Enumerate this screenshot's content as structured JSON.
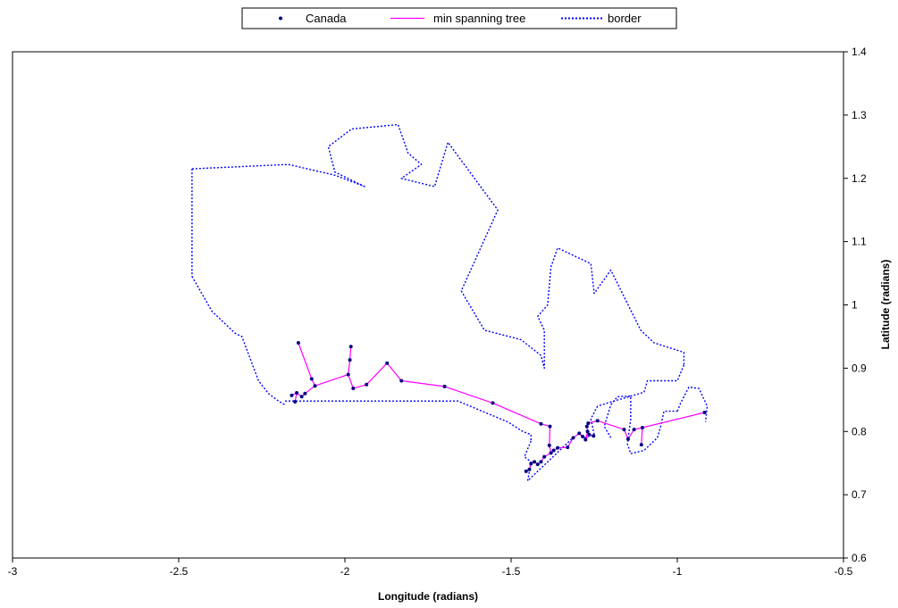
{
  "chart_data": {
    "type": "scatter",
    "xlabel": "Longitude (radians)",
    "ylabel": "Latitude (radians)",
    "xlim": [
      -3,
      -0.5
    ],
    "ylim": [
      0.6,
      1.4
    ],
    "x_ticks": [
      "-3",
      "-2.5",
      "-2",
      "-1.5",
      "-1",
      "-0.5"
    ],
    "y_ticks": [
      "0.6",
      "0.7",
      "0.8",
      "0.9",
      "1",
      "1.1",
      "1.2",
      "1.3",
      "1.4"
    ],
    "grid": false,
    "y_axis_position": "right",
    "legend_position": "top",
    "series": [
      {
        "name": "Canada",
        "style": "markers",
        "color": "#000080",
        "points": [
          [
            -2.14,
            0.94
          ],
          [
            -2.1,
            0.883
          ],
          [
            -2.09,
            0.872
          ],
          [
            -2.12,
            0.86
          ],
          [
            -2.13,
            0.855
          ],
          [
            -2.145,
            0.861
          ],
          [
            -2.16,
            0.857
          ],
          [
            -2.15,
            0.847
          ],
          [
            -1.99,
            0.89
          ],
          [
            -1.985,
            0.913
          ],
          [
            -1.982,
            0.934
          ],
          [
            -1.975,
            0.868
          ],
          [
            -1.935,
            0.874
          ],
          [
            -1.873,
            0.908
          ],
          [
            -1.83,
            0.88
          ],
          [
            -1.7,
            0.871
          ],
          [
            -1.555,
            0.845
          ],
          [
            -1.41,
            0.812
          ],
          [
            -1.383,
            0.808
          ],
          [
            -1.385,
            0.778
          ],
          [
            -1.38,
            0.766
          ],
          [
            -1.372,
            0.77
          ],
          [
            -1.36,
            0.774
          ],
          [
            -1.4,
            0.76
          ],
          [
            -1.41,
            0.752
          ],
          [
            -1.42,
            0.748
          ],
          [
            -1.43,
            0.752
          ],
          [
            -1.44,
            0.749
          ],
          [
            -1.445,
            0.74
          ],
          [
            -1.455,
            0.737
          ],
          [
            -1.33,
            0.775
          ],
          [
            -1.313,
            0.79
          ],
          [
            -1.295,
            0.797
          ],
          [
            -1.285,
            0.792
          ],
          [
            -1.276,
            0.787
          ],
          [
            -1.265,
            0.795
          ],
          [
            -1.252,
            0.793
          ],
          [
            -1.27,
            0.8
          ],
          [
            -1.272,
            0.808
          ],
          [
            -1.268,
            0.813
          ],
          [
            -1.24,
            0.817
          ],
          [
            -1.16,
            0.803
          ],
          [
            -1.148,
            0.788
          ],
          [
            -1.13,
            0.803
          ],
          [
            -1.105,
            0.806
          ],
          [
            -1.108,
            0.779
          ],
          [
            -0.918,
            0.83
          ]
        ]
      },
      {
        "name": "min spanning tree",
        "style": "line",
        "color": "#ff00ff",
        "segments": [
          [
            [
              -2.14,
              0.94
            ],
            [
              -2.1,
              0.883
            ],
            [
              -2.09,
              0.872
            ],
            [
              -2.12,
              0.86
            ],
            [
              -2.13,
              0.855
            ],
            [
              -2.145,
              0.861
            ],
            [
              -2.16,
              0.857
            ]
          ],
          [
            [
              -2.145,
              0.861
            ],
            [
              -2.15,
              0.847
            ]
          ],
          [
            [
              -2.09,
              0.872
            ],
            [
              -1.99,
              0.89
            ],
            [
              -1.985,
              0.913
            ],
            [
              -1.982,
              0.934
            ]
          ],
          [
            [
              -1.99,
              0.89
            ],
            [
              -1.975,
              0.868
            ],
            [
              -1.935,
              0.874
            ],
            [
              -1.873,
              0.908
            ],
            [
              -1.83,
              0.88
            ],
            [
              -1.7,
              0.871
            ],
            [
              -1.555,
              0.845
            ],
            [
              -1.41,
              0.812
            ],
            [
              -1.383,
              0.808
            ],
            [
              -1.385,
              0.778
            ],
            [
              -1.38,
              0.766
            ],
            [
              -1.372,
              0.77
            ],
            [
              -1.36,
              0.774
            ],
            [
              -1.33,
              0.775
            ],
            [
              -1.313,
              0.79
            ],
            [
              -1.295,
              0.797
            ],
            [
              -1.285,
              0.792
            ],
            [
              -1.276,
              0.787
            ],
            [
              -1.265,
              0.795
            ],
            [
              -1.252,
              0.793
            ]
          ],
          [
            [
              -1.38,
              0.766
            ],
            [
              -1.4,
              0.76
            ],
            [
              -1.41,
              0.752
            ],
            [
              -1.42,
              0.748
            ],
            [
              -1.43,
              0.752
            ],
            [
              -1.44,
              0.749
            ],
            [
              -1.445,
              0.74
            ],
            [
              -1.455,
              0.737
            ]
          ],
          [
            [
              -1.276,
              0.787
            ],
            [
              -1.27,
              0.8
            ],
            [
              -1.272,
              0.808
            ],
            [
              -1.268,
              0.813
            ],
            [
              -1.24,
              0.817
            ],
            [
              -1.16,
              0.803
            ],
            [
              -1.148,
              0.788
            ],
            [
              -1.13,
              0.803
            ],
            [
              -1.105,
              0.806
            ],
            [
              -0.918,
              0.83
            ]
          ],
          [
            [
              -1.105,
              0.806
            ],
            [
              -1.108,
              0.779
            ]
          ]
        ]
      },
      {
        "name": "border",
        "style": "dotted",
        "color": "#0000ff",
        "segments": [
          [
            [
              -2.46,
              1.215
            ],
            [
              -2.46,
              1.045
            ]
          ],
          [
            [
              -2.46,
              1.045
            ],
            [
              -2.4,
              0.99
            ],
            [
              -2.33,
              0.955
            ],
            [
              -2.31,
              0.95
            ],
            [
              -2.26,
              0.88
            ],
            [
              -2.23,
              0.86
            ],
            [
              -2.2,
              0.848
            ],
            [
              -2.18,
              0.842
            ]
          ],
          [
            [
              -2.18,
              0.848
            ],
            [
              -1.66,
              0.848
            ],
            [
              -1.51,
              0.815
            ],
            [
              -1.465,
              0.8
            ],
            [
              -1.44,
              0.795
            ],
            [
              -1.44,
              0.785
            ]
          ],
          [
            [
              -2.46,
              1.215
            ],
            [
              -2.17,
              1.222
            ]
          ],
          [
            [
              -2.17,
              1.222
            ],
            [
              -2.03,
              1.205
            ],
            [
              -1.94,
              1.187
            ]
          ],
          [
            [
              -1.94,
              1.187
            ],
            [
              -2.03,
              1.21
            ],
            [
              -2.05,
              1.25
            ],
            [
              -1.98,
              1.278
            ],
            [
              -1.84,
              1.285
            ],
            [
              -1.81,
              1.24
            ],
            [
              -1.77,
              1.222
            ],
            [
              -1.83,
              1.2
            ],
            [
              -1.73,
              1.187
            ],
            [
              -1.69,
              1.257
            ],
            [
              -1.54,
              1.15
            ],
            [
              -1.65,
              1.022
            ],
            [
              -1.58,
              0.96
            ],
            [
              -1.47,
              0.945
            ],
            [
              -1.41,
              0.92
            ],
            [
              -1.4,
              0.9
            ],
            [
              -1.4,
              0.96
            ],
            [
              -1.42,
              0.982
            ],
            [
              -1.39,
              1.0
            ],
            [
              -1.38,
              1.06
            ],
            [
              -1.36,
              1.09
            ],
            [
              -1.26,
              1.065
            ],
            [
              -1.25,
              1.018
            ],
            [
              -1.2,
              1.055
            ],
            [
              -1.11,
              0.96
            ],
            [
              -1.07,
              0.94
            ],
            [
              -0.98,
              0.925
            ],
            [
              -0.98,
              0.905
            ]
          ],
          [
            [
              -0.98,
              0.905
            ],
            [
              -1.0,
              0.88
            ],
            [
              -1.09,
              0.88
            ],
            [
              -1.1,
              0.862
            ],
            [
              -1.21,
              0.845
            ],
            [
              -1.24,
              0.84
            ]
          ],
          [
            [
              -1.24,
              0.84
            ],
            [
              -1.26,
              0.82
            ],
            [
              -1.25,
              0.795
            ],
            [
              -1.28,
              0.79
            ]
          ],
          [
            [
              -1.2,
              0.79
            ],
            [
              -1.22,
              0.808
            ],
            [
              -1.2,
              0.842
            ],
            [
              -1.18,
              0.855
            ],
            [
              -1.14,
              0.856
            ],
            [
              -1.14,
              0.82
            ],
            [
              -1.15,
              0.78
            ],
            [
              -1.14,
              0.765
            ],
            [
              -1.1,
              0.77
            ],
            [
              -1.06,
              0.79
            ],
            [
              -1.05,
              0.808
            ],
            [
              -1.04,
              0.832
            ],
            [
              -1.0,
              0.832
            ]
          ],
          [
            [
              -1.0,
              0.832
            ],
            [
              -0.99,
              0.845
            ],
            [
              -0.965,
              0.87
            ],
            [
              -0.935,
              0.868
            ],
            [
              -0.91,
              0.84
            ],
            [
              -0.915,
              0.815
            ]
          ],
          [
            [
              -1.44,
              0.785
            ],
            [
              -1.46,
              0.76
            ],
            [
              -1.44,
              0.752
            ],
            [
              -1.45,
              0.722
            ],
            [
              -1.41,
              0.742
            ],
            [
              -1.35,
              0.772
            ],
            [
              -1.31,
              0.792
            ]
          ]
        ]
      }
    ]
  }
}
